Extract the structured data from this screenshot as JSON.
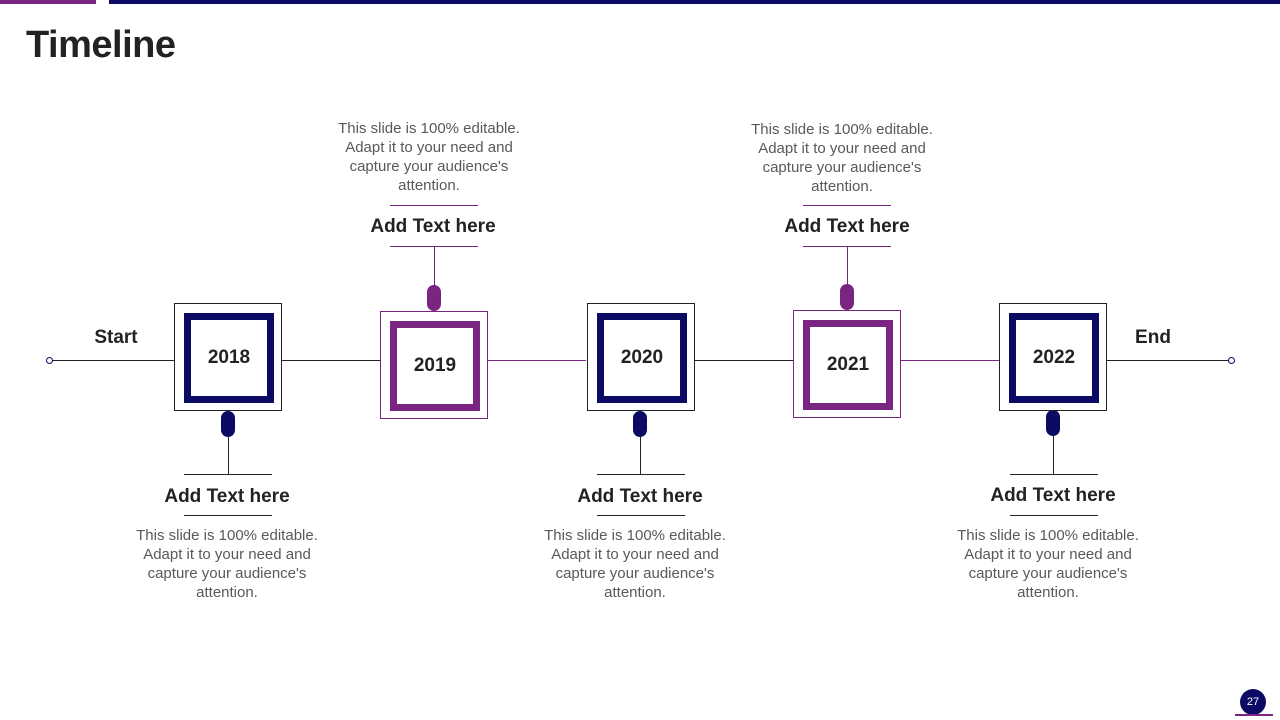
{
  "title": "Timeline",
  "start_label": "Start",
  "end_label": "End",
  "page_number": "27",
  "milestones": [
    {
      "year": "2018",
      "heading": "Add Text here",
      "description": "This slide is 100% editable. Adapt it to your need and capture your audience's attention."
    },
    {
      "year": "2019",
      "heading": "Add Text here",
      "description": "This slide is 100% editable. Adapt it to your need and capture your audience's attention."
    },
    {
      "year": "2020",
      "heading": "Add Text here",
      "description": "This slide is 100% editable. Adapt it to your need and capture your audience's attention."
    },
    {
      "year": "2021",
      "heading": "Add Text here",
      "description": "This slide is 100% editable. Adapt it to your need and capture your audience's attention."
    },
    {
      "year": "2022",
      "heading": "Add Text here",
      "description": "This slide is 100% editable. Adapt it to your need and capture your audience's attention."
    }
  ],
  "colors": {
    "navy": "#0b0b66",
    "purple": "#7b2582",
    "text": "#222222",
    "body_text": "#595959"
  }
}
